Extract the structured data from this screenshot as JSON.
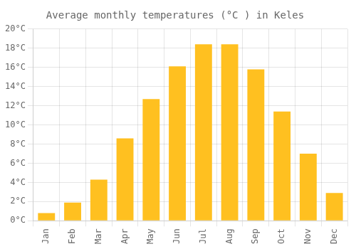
{
  "chart_data": {
    "type": "bar",
    "title": "Average monthly temperatures (°C ) in Keles",
    "categories": [
      "Jan",
      "Feb",
      "Mar",
      "Apr",
      "May",
      "Jun",
      "Jul",
      "Aug",
      "Sep",
      "Oct",
      "Nov",
      "Dec"
    ],
    "values": [
      0.8,
      1.9,
      4.3,
      8.6,
      12.7,
      16.1,
      18.4,
      18.4,
      15.8,
      11.4,
      7.0,
      2.9
    ],
    "color": "#FFC020",
    "ylim": [
      0,
      20
    ],
    "yticks": [
      {
        "value": 0,
        "label": "0°C"
      },
      {
        "value": 2,
        "label": "2°C"
      },
      {
        "value": 4,
        "label": "4°C"
      },
      {
        "value": 6,
        "label": "6°C"
      },
      {
        "value": 8,
        "label": "8°C"
      },
      {
        "value": 10,
        "label": "10°C"
      },
      {
        "value": 12,
        "label": "12°C"
      },
      {
        "value": 14,
        "label": "14°C"
      },
      {
        "value": 16,
        "label": "16°C"
      },
      {
        "value": 18,
        "label": "18°C"
      },
      {
        "value": 20,
        "label": "20°C"
      }
    ],
    "grid": true
  }
}
